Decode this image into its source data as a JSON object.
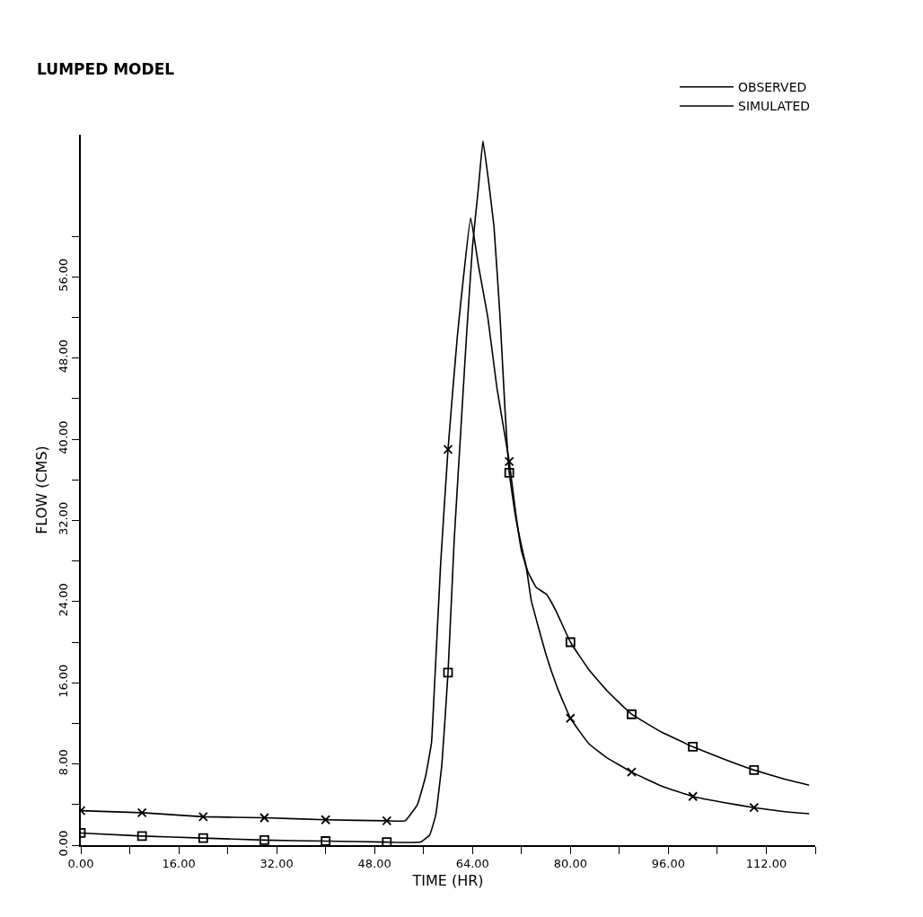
{
  "chart_data": {
    "type": "line",
    "title": "LUMPED MODEL",
    "xlabel": "TIME (HR)",
    "ylabel": "FLOW (CMS)",
    "xlim": [
      0,
      120
    ],
    "ylim": [
      0,
      70
    ],
    "xticks": [
      {
        "value": 0,
        "label": "0.00"
      },
      {
        "value": 8,
        "label": null
      },
      {
        "value": 16,
        "label": "16.00"
      },
      {
        "value": 24,
        "label": null
      },
      {
        "value": 32,
        "label": "32.00"
      },
      {
        "value": 40,
        "label": null
      },
      {
        "value": 48,
        "label": "48.00"
      },
      {
        "value": 56,
        "label": null
      },
      {
        "value": 64,
        "label": "64.00"
      },
      {
        "value": 72,
        "label": null
      },
      {
        "value": 80,
        "label": "80.00"
      },
      {
        "value": 88,
        "label": null
      },
      {
        "value": 96,
        "label": "96.00"
      },
      {
        "value": 104,
        "label": null
      },
      {
        "value": 112,
        "label": "112.00"
      },
      {
        "value": 120,
        "label": null
      }
    ],
    "yticks": [
      {
        "value": 0,
        "label": "0.00"
      },
      {
        "value": 4,
        "label": null
      },
      {
        "value": 8,
        "label": "8.00"
      },
      {
        "value": 12,
        "label": null
      },
      {
        "value": 16,
        "label": "16.00"
      },
      {
        "value": 20,
        "label": null
      },
      {
        "value": 24,
        "label": "24.00"
      },
      {
        "value": 28,
        "label": null
      },
      {
        "value": 32,
        "label": "32.00"
      },
      {
        "value": 36,
        "label": null
      },
      {
        "value": 40,
        "label": "40.00"
      },
      {
        "value": 44,
        "label": null
      },
      {
        "value": 48,
        "label": "48.00"
      },
      {
        "value": 52,
        "label": null
      },
      {
        "value": 56,
        "label": "56.00"
      },
      {
        "value": 60,
        "label": null
      }
    ],
    "legend": "top right",
    "line_style": "solid",
    "series": [
      {
        "name": "OBSERVED",
        "color": "#000000",
        "marker": "none",
        "x": [
          0,
          10,
          20,
          30,
          40,
          50,
          53,
          55,
          56.3,
          57.3,
          57.7,
          58.8,
          60,
          61.5,
          63.7,
          65,
          66.5,
          68,
          70,
          71,
          72,
          72.8,
          73.6,
          76.1,
          78,
          80,
          83,
          86,
          90,
          95,
          100,
          105,
          110,
          115,
          119
        ],
        "values": [
          3.4,
          3.2,
          2.8,
          2.7,
          2.5,
          2.4,
          2.4,
          4,
          6.7,
          10.1,
          14.6,
          27.8,
          39,
          50,
          61.8,
          57,
          52,
          45,
          37.8,
          33,
          29,
          27.3,
          24.1,
          18.6,
          15.3,
          12.5,
          10,
          8.6,
          7.2,
          5.8,
          4.8,
          4.2,
          3.7,
          3.3,
          3.1
        ]
      },
      {
        "name": "SIMULATED",
        "color": "#000000",
        "marker": "none",
        "x": [
          0,
          10,
          20,
          30,
          40,
          50,
          55.5,
          57,
          58,
          59,
          60,
          61,
          62,
          63,
          64,
          65,
          65.7,
          66.5,
          67.5,
          68.5,
          69.3,
          70,
          71,
          72,
          73,
          74.4,
          76.1,
          77.7,
          80,
          83,
          86,
          90,
          95,
          100,
          105,
          110,
          115,
          119
        ],
        "values": [
          1.2,
          0.9,
          0.7,
          0.5,
          0.4,
          0.3,
          0.3,
          1,
          3,
          8,
          17,
          30,
          40,
          50,
          59,
          65,
          69.4,
          66,
          61,
          52,
          43,
          36.7,
          32.5,
          29.5,
          27,
          25.4,
          24.7,
          23,
          20,
          17.3,
          15.2,
          12.9,
          11.1,
          9.7,
          8.5,
          7.4,
          6.5,
          5.9
        ]
      },
      {
        "type": "scatter",
        "color": "#000000",
        "marker": "cross",
        "x": [
          0,
          10,
          20,
          30,
          40,
          50,
          60,
          70,
          80,
          90,
          100,
          110
        ],
        "values": [
          3.4,
          3.2,
          2.8,
          2.7,
          2.5,
          2.4,
          39,
          37.8,
          12.5,
          7.2,
          4.8,
          3.7
        ]
      },
      {
        "type": "scatter",
        "color": "#000000",
        "marker": "square",
        "x": [
          0,
          10,
          20,
          30,
          40,
          50,
          60,
          70,
          80,
          90,
          100,
          110
        ],
        "values": [
          1.2,
          0.9,
          0.7,
          0.5,
          0.4,
          0.3,
          17,
          36.7,
          20,
          12.9,
          9.7,
          7.4
        ]
      }
    ]
  }
}
